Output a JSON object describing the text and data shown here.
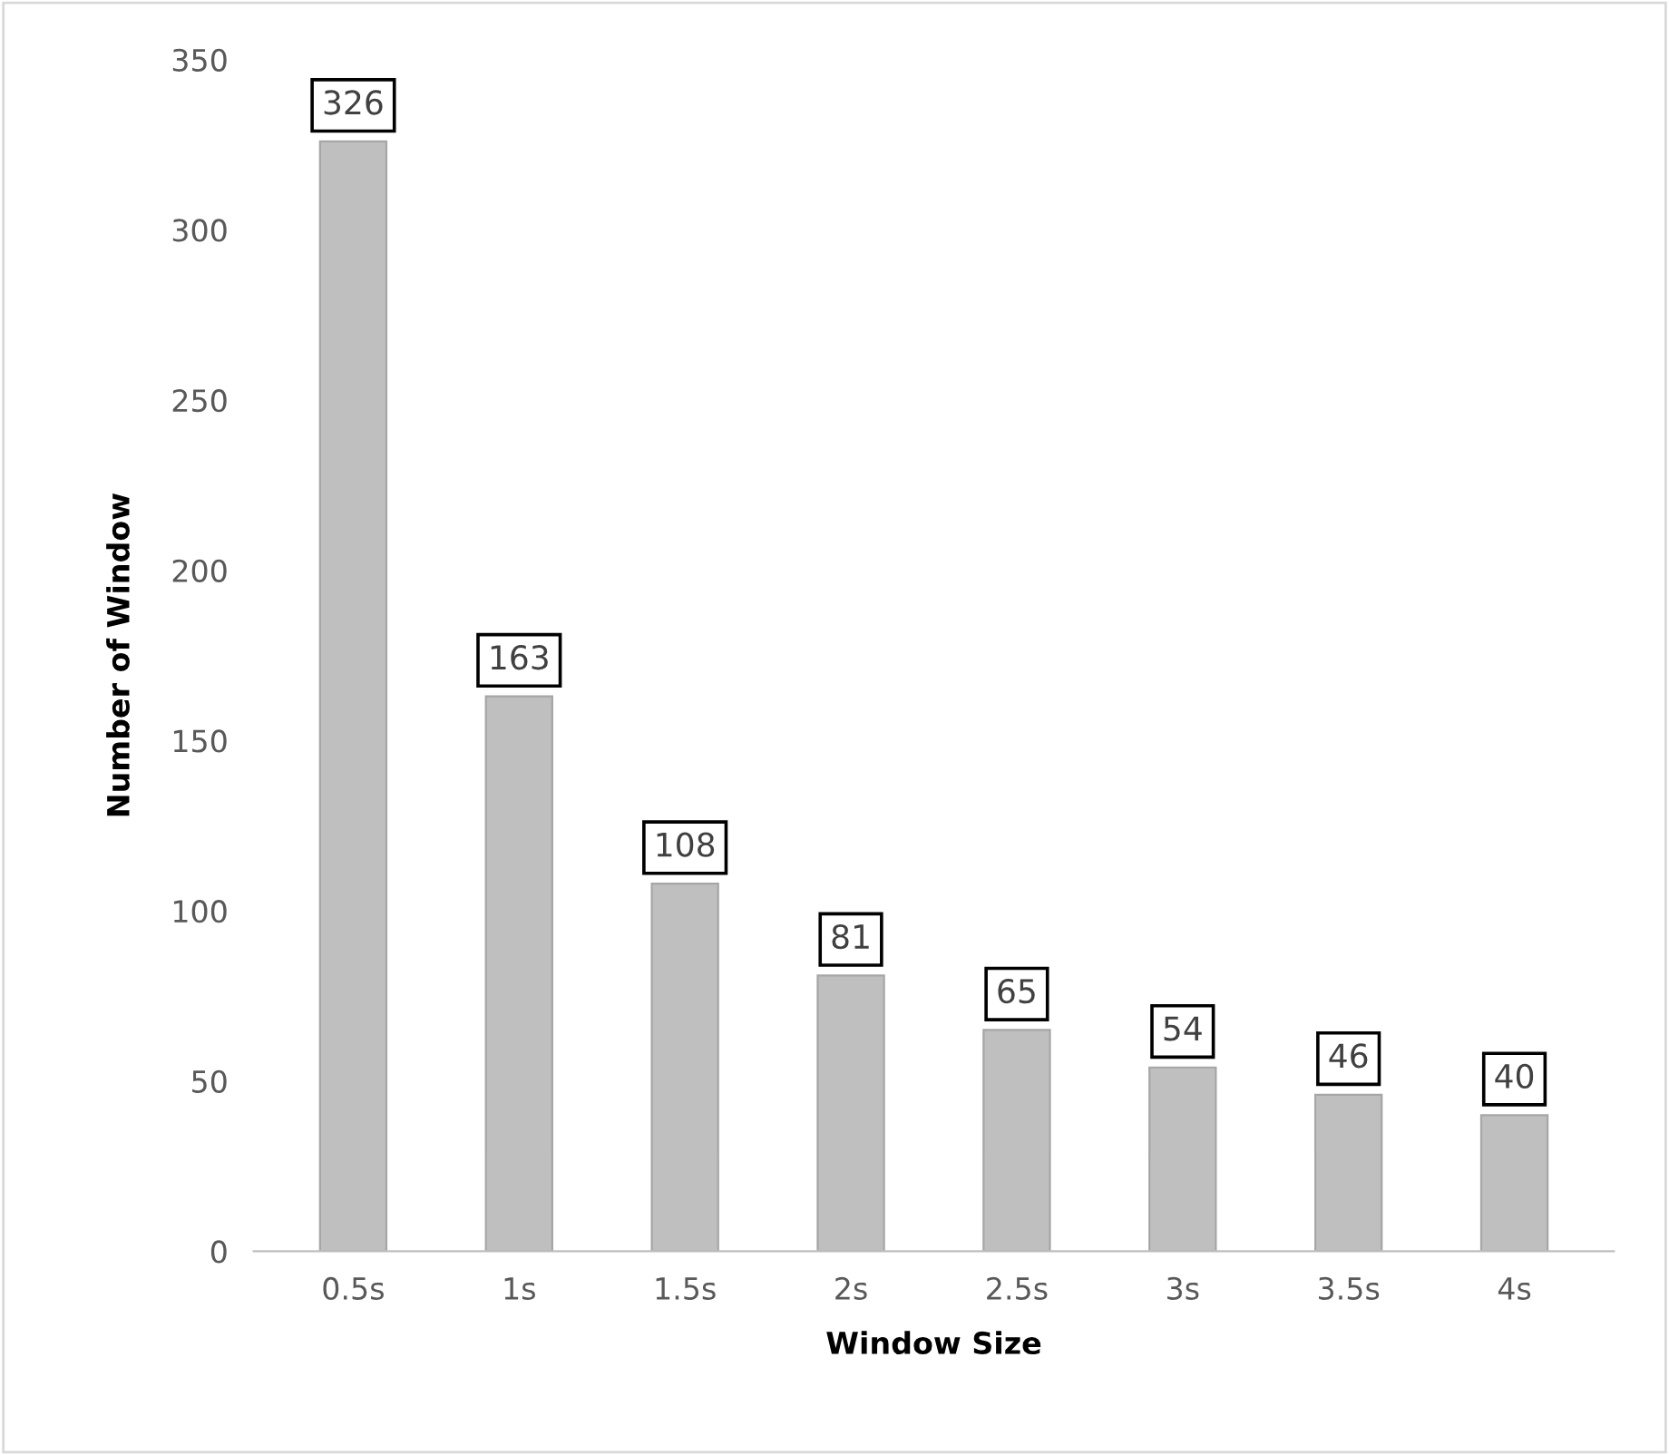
{
  "chart_data": {
    "type": "bar",
    "xlabel": "Window Size",
    "ylabel": "Number of Window",
    "categories": [
      "0.5s",
      "1s",
      "1.5s",
      "2s",
      "2.5s",
      "3s",
      "3.5s",
      "4s"
    ],
    "values": [
      326,
      163,
      108,
      81,
      65,
      54,
      46,
      40
    ],
    "color": "#bfbfbf",
    "ylim": [
      0,
      350
    ],
    "yticks": [
      0,
      50,
      100,
      150,
      200,
      250,
      300,
      350
    ],
    "data_labels": true,
    "grid": false
  }
}
